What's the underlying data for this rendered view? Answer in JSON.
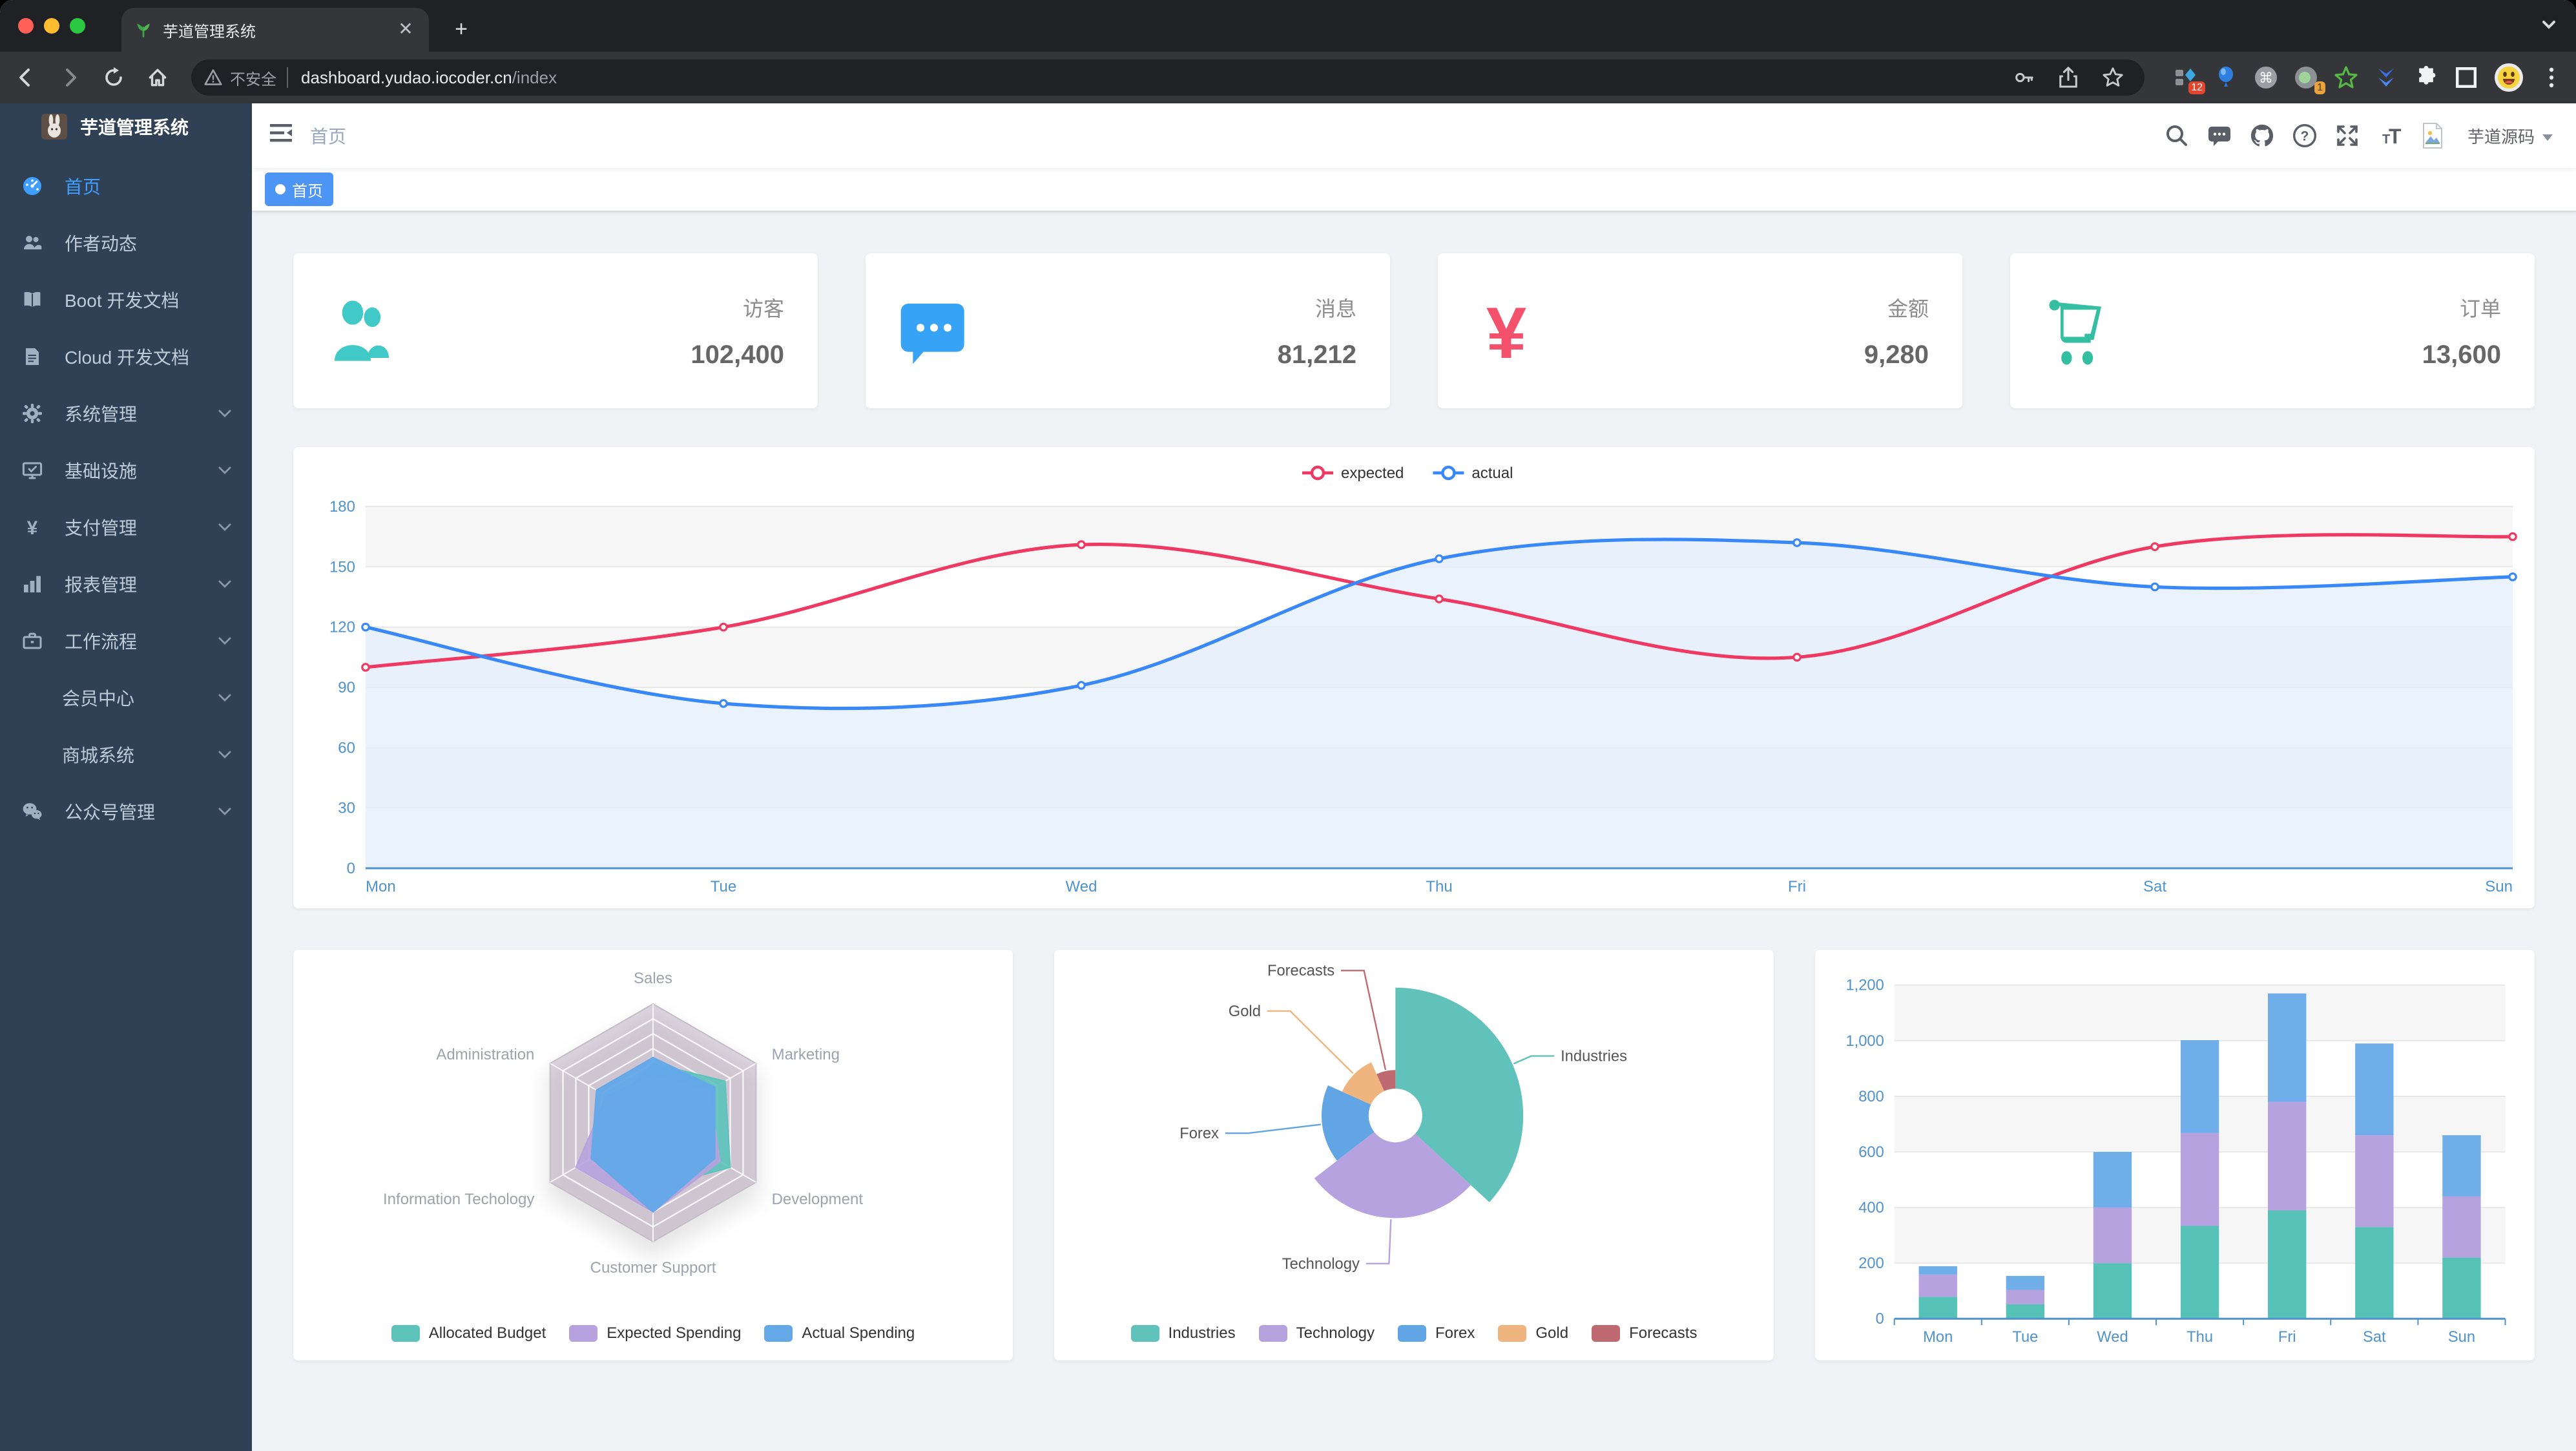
{
  "browser": {
    "traffic_lights": [
      "#ff5f57",
      "#febc2e",
      "#28c840"
    ],
    "tab": {
      "title": "芋道管理系统"
    },
    "address": {
      "security_label": "不安全",
      "host": "dashboard.yudao.iocoder.cn",
      "path": "/index"
    },
    "extension_badges": {
      "first": "12",
      "second": "1"
    }
  },
  "sidebar": {
    "title": "芋道管理系统",
    "items": [
      {
        "label": "首页",
        "icon": "dashboard-icon",
        "active": true
      },
      {
        "label": "作者动态",
        "icon": "people-icon"
      },
      {
        "label": "Boot 开发文档",
        "icon": "book-icon"
      },
      {
        "label": "Cloud 开发文档",
        "icon": "document-icon"
      },
      {
        "label": "系统管理",
        "icon": "gear-icon",
        "expandable": true
      },
      {
        "label": "基础设施",
        "icon": "monitor-icon",
        "expandable": true
      },
      {
        "label": "支付管理",
        "icon": "yen-icon",
        "expandable": true
      },
      {
        "label": "报表管理",
        "icon": "bar-chart-icon",
        "expandable": true
      },
      {
        "label": "工作流程",
        "icon": "briefcase-icon",
        "expandable": true
      },
      {
        "label": "会员中心",
        "icon": null,
        "expandable": true
      },
      {
        "label": "商城系统",
        "icon": null,
        "expandable": true
      },
      {
        "label": "公众号管理",
        "icon": "wechat-icon",
        "expandable": true
      }
    ]
  },
  "navbar": {
    "breadcrumb": "首页",
    "username": "芋道源码"
  },
  "tags_view": {
    "tags": [
      {
        "label": "首页",
        "active": true
      }
    ]
  },
  "stat_cards": [
    {
      "label": "访客",
      "value": "102,400",
      "icon": "people-icon",
      "color": "#40c9c6"
    },
    {
      "label": "消息",
      "value": "81,212",
      "icon": "message-icon",
      "color": "#36a3f7"
    },
    {
      "label": "金额",
      "value": "9,280",
      "icon": "money-icon",
      "color": "#f4516c"
    },
    {
      "label": "订单",
      "value": "13,600",
      "icon": "shopping-cart-icon",
      "color": "#34bfa3"
    }
  ],
  "chart_data": [
    {
      "type": "line",
      "categories": [
        "Mon",
        "Tue",
        "Wed",
        "Thu",
        "Fri",
        "Sat",
        "Sun"
      ],
      "series": [
        {
          "name": "expected",
          "color": "#F03962",
          "values": [
            100,
            120,
            161,
            134,
            105,
            160,
            165
          ]
        },
        {
          "name": "actual",
          "color": "#3888FA",
          "values": [
            120,
            82,
            91,
            154,
            162,
            140,
            145
          ],
          "area_color": "rgba(227,238,252,0.75)"
        }
      ],
      "ylim": [
        0,
        180
      ],
      "ytick": 30,
      "legend_position": "top-center",
      "axis_color": "#4F93CE",
      "band_color": "#F6F6F6",
      "grid": true
    },
    {
      "type": "radar",
      "indicators": [
        {
          "name": "Sales",
          "max": 10000
        },
        {
          "name": "Administration",
          "max": 20000
        },
        {
          "name": "Information Techology",
          "max": 20000
        },
        {
          "name": "Customer Support",
          "max": 20000
        },
        {
          "name": "Development",
          "max": 20000
        },
        {
          "name": "Marketing",
          "max": 20000
        }
      ],
      "series": [
        {
          "name": "Allocated Budget",
          "color": "#5CC2BA",
          "values": [
            5000,
            7000,
            12000,
            11000,
            15000,
            14000
          ]
        },
        {
          "name": "Expected Spending",
          "color": "#B6A2DE",
          "values": [
            4000,
            9000,
            15000,
            15000,
            13000,
            11000
          ]
        },
        {
          "name": "Actual Spending",
          "color": "#64A8E8",
          "values": [
            5500,
            11000,
            12000,
            15000,
            12000,
            12000
          ]
        }
      ],
      "grid_color": "rgba(127,95,132,0.27)",
      "label_color": "#9CA3AE",
      "legend_position": "bottom"
    },
    {
      "type": "pie",
      "rose_type": "radius",
      "slices": [
        {
          "name": "Industries",
          "value": 320,
          "color": "#60C2BA"
        },
        {
          "name": "Technology",
          "value": 240,
          "color": "#B6A2DE"
        },
        {
          "name": "Forex",
          "value": 149,
          "color": "#61A5E4"
        },
        {
          "name": "Gold",
          "value": 100,
          "color": "#F0B47E"
        },
        {
          "name": "Forecasts",
          "value": 59,
          "color": "#BF6A70"
        }
      ],
      "legend_position": "bottom",
      "label_color": "#555555"
    },
    {
      "type": "bar",
      "stacked": true,
      "categories": [
        "Mon",
        "Tue",
        "Wed",
        "Thu",
        "Fri",
        "Sat",
        "Sun"
      ],
      "series": [
        {
          "color": "#55C1B7",
          "values": [
            79,
            52,
            200,
            334,
            390,
            330,
            220
          ]
        },
        {
          "color": "#B6A2DE",
          "values": [
            80,
            52,
            200,
            334,
            390,
            330,
            220
          ]
        },
        {
          "color": "#6FAEE9",
          "values": [
            30,
            50,
            200,
            334,
            390,
            330,
            220
          ]
        }
      ],
      "ylim": [
        0,
        1200
      ],
      "ytick": 200,
      "ytick_labels": [
        "0",
        "200",
        "400",
        "600",
        "800",
        "1,000",
        "1,200"
      ],
      "axis_color": "#4F93CE",
      "band_color": "#F6F6F6",
      "grid": true
    }
  ]
}
